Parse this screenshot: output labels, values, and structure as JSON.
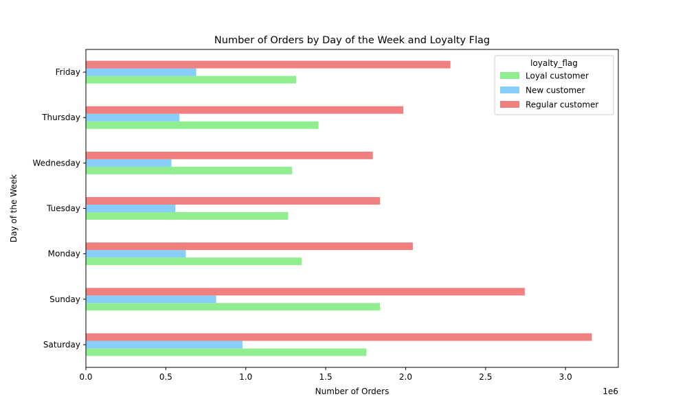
{
  "chart_data": {
    "type": "bar",
    "orientation": "horizontal",
    "title": "Number of Orders by Day of the Week and Loyalty Flag",
    "xlabel": "Number of Orders",
    "ylabel": "Day of the Week",
    "x_offset_label": "1e6",
    "xlim": [
      0,
      3.33
    ],
    "x_unit_multiplier": 1000000,
    "x_ticks": [
      0.0,
      0.5,
      1.0,
      1.5,
      2.0,
      2.5,
      3.0
    ],
    "x_tick_labels": [
      "0.0",
      "0.5",
      "1.0",
      "1.5",
      "2.0",
      "2.5",
      "3.0"
    ],
    "categories": [
      "Saturday",
      "Sunday",
      "Monday",
      "Tuesday",
      "Wednesday",
      "Thursday",
      "Friday"
    ],
    "series": [
      {
        "name": "Loyal customer",
        "color": "#90ee90",
        "values": [
          1.755,
          1.84,
          1.35,
          1.265,
          1.29,
          1.455,
          1.315
        ]
      },
      {
        "name": "New customer",
        "color": "#87cefa",
        "values": [
          0.98,
          0.815,
          0.625,
          0.56,
          0.535,
          0.585,
          0.69
        ]
      },
      {
        "name": "Regular customer",
        "color": "#f08080",
        "values": [
          3.165,
          2.745,
          2.045,
          1.84,
          1.795,
          1.985,
          2.28
        ]
      }
    ],
    "legend": {
      "title": "loyalty_flag",
      "placement": "top-right"
    },
    "grid": false
  }
}
